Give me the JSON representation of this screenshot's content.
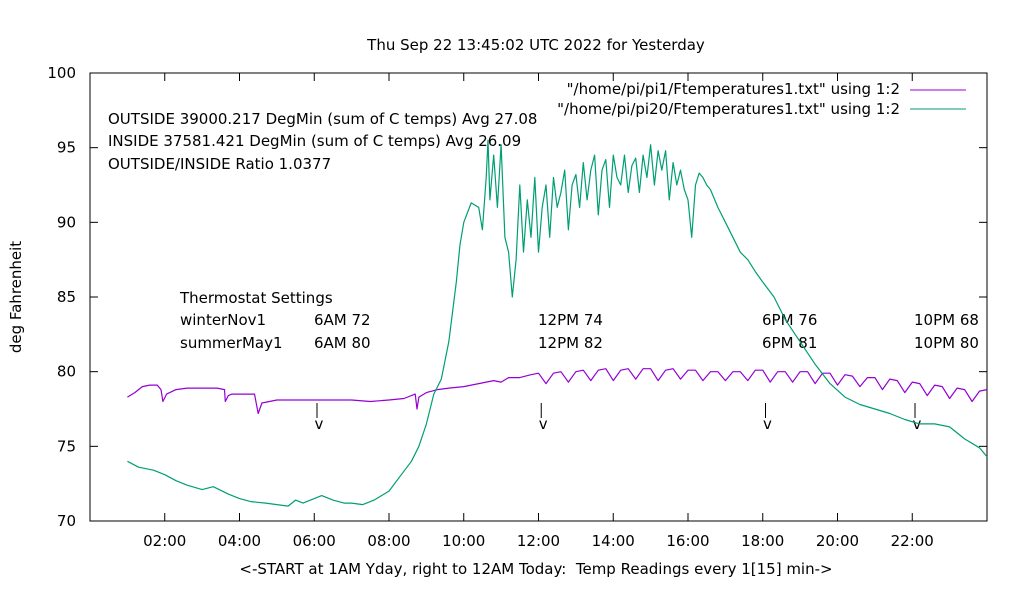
{
  "chart_data": {
    "type": "line",
    "title": "Thu Sep 22 13:45:02 UTC 2022 for Yesterday",
    "xlabel": "<-START at 1AM Yday, right to 12AM Today:  Temp Readings every 1[15] min->",
    "ylabel": "deg Fahrenheit",
    "xlim": [
      0,
      24
    ],
    "ylim": [
      70,
      100
    ],
    "grid": false,
    "legend_position": "top-right",
    "x_tick_labels": [
      "02:00",
      "04:00",
      "06:00",
      "08:00",
      "10:00",
      "12:00",
      "14:00",
      "16:00",
      "18:00",
      "20:00",
      "22:00"
    ],
    "x_tick_values": [
      2,
      4,
      6,
      8,
      10,
      12,
      14,
      16,
      18,
      20,
      22
    ],
    "y_tick_labels": [
      "70",
      "75",
      "80",
      "85",
      "90",
      "95",
      "100"
    ],
    "y_tick_values": [
      70,
      75,
      80,
      85,
      90,
      95,
      100
    ],
    "stats": [
      "OUTSIDE 39000.217 DegMin (sum of C temps) Avg 27.08",
      "INSIDE 37581.421 DegMin (sum of C temps) Avg 26.09",
      "OUTSIDE/INSIDE Ratio 1.0377"
    ],
    "thermostat": {
      "heading": "Thermostat Settings",
      "rows": [
        {
          "label": "winterNov1",
          "values": [
            "6AM 72",
            "12PM 74",
            "6PM 76",
            "10PM 68"
          ]
        },
        {
          "label": "summerMay1",
          "values": [
            "6AM 80",
            "12PM 82",
            "6PM 81",
            "10PM 80"
          ]
        }
      ]
    },
    "markers": [
      {
        "x": 6.1,
        "label": "v"
      },
      {
        "x": 12.1,
        "label": "v"
      },
      {
        "x": 18.1,
        "label": "v"
      },
      {
        "x": 22.1,
        "label": "v"
      }
    ],
    "series": [
      {
        "name": "\"/home/pi/pi1/Ftemperatures1.txt\" using 1:2",
        "color": "#9400d3",
        "x": [
          1.0,
          1.2,
          1.4,
          1.6,
          1.8,
          1.9,
          1.95,
          2.05,
          2.3,
          2.6,
          3.0,
          3.4,
          3.6,
          3.62,
          3.7,
          3.8,
          4.2,
          4.4,
          4.5,
          4.6,
          4.8,
          5.0,
          5.5,
          6.0,
          6.5,
          7.0,
          7.5,
          8.0,
          8.4,
          8.7,
          8.75,
          8.8,
          9.0,
          9.3,
          9.6,
          10.0,
          10.4,
          10.8,
          11.0,
          11.2,
          11.5,
          11.8,
          12.0,
          12.2,
          12.4,
          12.6,
          12.8,
          13.0,
          13.2,
          13.4,
          13.6,
          13.8,
          14.0,
          14.2,
          14.4,
          14.6,
          14.8,
          15.0,
          15.2,
          15.4,
          15.6,
          15.8,
          16.0,
          16.2,
          16.4,
          16.6,
          16.8,
          17.0,
          17.2,
          17.4,
          17.6,
          17.8,
          18.0,
          18.2,
          18.4,
          18.6,
          18.8,
          19.0,
          19.2,
          19.4,
          19.6,
          19.8,
          20.0,
          20.2,
          20.4,
          20.6,
          20.8,
          21.0,
          21.2,
          21.4,
          21.6,
          21.8,
          22.0,
          22.2,
          22.4,
          22.6,
          22.8,
          23.0,
          23.2,
          23.4,
          23.6,
          23.8,
          24.0
        ],
        "y": [
          78.3,
          78.6,
          79.0,
          79.1,
          79.1,
          78.8,
          78.0,
          78.5,
          78.8,
          78.9,
          78.9,
          78.9,
          78.8,
          78.0,
          78.4,
          78.5,
          78.5,
          78.5,
          77.2,
          77.9,
          78.0,
          78.1,
          78.1,
          78.1,
          78.1,
          78.1,
          78.0,
          78.1,
          78.2,
          78.5,
          77.5,
          78.3,
          78.6,
          78.8,
          78.9,
          79.0,
          79.2,
          79.4,
          79.3,
          79.6,
          79.6,
          79.8,
          79.9,
          79.2,
          79.9,
          80.0,
          79.3,
          80.0,
          80.1,
          79.4,
          80.1,
          80.2,
          79.4,
          80.1,
          80.2,
          79.5,
          80.2,
          80.2,
          79.4,
          80.1,
          80.2,
          79.5,
          80.1,
          80.1,
          79.4,
          80.0,
          80.0,
          79.4,
          80.0,
          80.0,
          79.4,
          80.1,
          80.1,
          79.3,
          80.0,
          80.0,
          79.3,
          80.0,
          80.0,
          79.2,
          79.9,
          79.9,
          79.1,
          79.8,
          79.7,
          79.0,
          79.6,
          79.6,
          78.8,
          79.5,
          79.4,
          78.6,
          79.3,
          79.2,
          78.4,
          79.1,
          79.0,
          78.2,
          78.9,
          78.8,
          78.0,
          78.7,
          78.8
        ]
      },
      {
        "name": "\"/home/pi/pi20/Ftemperatures1.txt\" using 1:2",
        "color": "#009e73",
        "x": [
          1.0,
          1.3,
          1.7,
          2.0,
          2.3,
          2.6,
          3.0,
          3.3,
          3.7,
          4.0,
          4.3,
          4.7,
          5.0,
          5.3,
          5.5,
          5.7,
          6.0,
          6.2,
          6.5,
          6.8,
          7.0,
          7.3,
          7.6,
          8.0,
          8.3,
          8.6,
          8.8,
          9.0,
          9.2,
          9.4,
          9.6,
          9.8,
          9.9,
          10.0,
          10.2,
          10.4,
          10.5,
          10.6,
          10.65,
          10.7,
          10.8,
          10.9,
          11.0,
          11.1,
          11.2,
          11.3,
          11.4,
          11.5,
          11.6,
          11.7,
          11.8,
          11.9,
          12.0,
          12.1,
          12.2,
          12.3,
          12.4,
          12.5,
          12.6,
          12.7,
          12.8,
          12.9,
          13.0,
          13.1,
          13.2,
          13.3,
          13.4,
          13.5,
          13.6,
          13.7,
          13.8,
          13.9,
          14.0,
          14.1,
          14.2,
          14.3,
          14.4,
          14.5,
          14.6,
          14.7,
          14.8,
          14.9,
          15.0,
          15.1,
          15.2,
          15.3,
          15.4,
          15.5,
          15.6,
          15.7,
          15.8,
          15.9,
          16.0,
          16.1,
          16.2,
          16.3,
          16.4,
          16.5,
          16.6,
          16.8,
          17.0,
          17.2,
          17.4,
          17.6,
          17.8,
          18.0,
          18.3,
          18.6,
          19.0,
          19.4,
          19.8,
          20.2,
          20.6,
          21.0,
          21.4,
          21.8,
          22.2,
          22.6,
          23.0,
          23.4,
          23.8,
          24.0
        ],
        "y": [
          74.0,
          73.6,
          73.4,
          73.1,
          72.7,
          72.4,
          72.1,
          72.3,
          71.8,
          71.5,
          71.3,
          71.2,
          71.1,
          71.0,
          71.4,
          71.2,
          71.5,
          71.7,
          71.4,
          71.2,
          71.2,
          71.1,
          71.4,
          72.0,
          73.0,
          74.0,
          75.0,
          76.5,
          78.5,
          79.5,
          82.0,
          86.0,
          88.5,
          90.0,
          91.3,
          91.0,
          89.5,
          93.0,
          95.5,
          91.5,
          94.5,
          91.0,
          95.2,
          89.0,
          88.0,
          85.0,
          87.5,
          92.5,
          88.0,
          91.5,
          89.0,
          93.0,
          88.0,
          91.0,
          92.5,
          89.0,
          93.0,
          91.0,
          92.0,
          93.5,
          89.5,
          92.5,
          93.2,
          91.0,
          94.0,
          91.5,
          93.5,
          94.5,
          90.5,
          93.5,
          94.2,
          91.0,
          94.5,
          93.0,
          92.5,
          94.5,
          92.0,
          93.8,
          94.3,
          92.0,
          94.5,
          93.0,
          95.2,
          92.5,
          94.8,
          93.5,
          94.8,
          91.5,
          94.0,
          92.5,
          93.5,
          92.2,
          91.5,
          89.0,
          92.5,
          93.3,
          93.0,
          92.5,
          92.2,
          91.0,
          90.0,
          89.0,
          88.0,
          87.5,
          86.7,
          86.0,
          85.0,
          83.5,
          82.0,
          80.5,
          79.2,
          78.3,
          77.8,
          77.5,
          77.2,
          76.8,
          76.5,
          76.5,
          76.3,
          75.5,
          74.9,
          74.3
        ]
      }
    ]
  }
}
